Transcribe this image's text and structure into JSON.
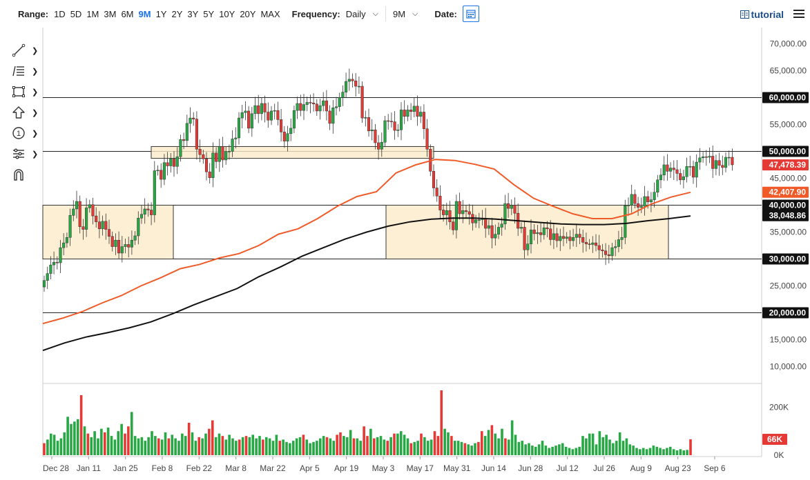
{
  "toolbar": {
    "range_label": "Range:",
    "ranges": [
      "1D",
      "5D",
      "1M",
      "3M",
      "6M",
      "9M",
      "1Y",
      "2Y",
      "3Y",
      "5Y",
      "10Y",
      "20Y",
      "MAX"
    ],
    "active_range": "9M",
    "frequency_label": "Frequency:",
    "frequency_value": "Daily",
    "period_value": "9M",
    "date_label": "Date:",
    "tutorial_label": "tutorial"
  },
  "tools": [
    "line-tool-icon",
    "fibonacci-tool-icon",
    "rectangle-tool-icon",
    "arrow-tool-icon",
    "number-label-icon",
    "measure-tool-icon",
    "magnet-icon"
  ],
  "colors": {
    "up": "#27a844",
    "down": "#e53935",
    "ma50": "#ef5a28",
    "ma200": "#111111",
    "zone_fill": "#fcebc9",
    "zone_stroke": "#333333"
  },
  "chart_data": {
    "type": "candlestick",
    "x_ticks": [
      "Dec 28",
      "Jan 11",
      "Jan 25",
      "Feb 8",
      "Feb 22",
      "Mar 8",
      "Mar 22",
      "Apr 5",
      "Apr 19",
      "May 3",
      "May 17",
      "May 31",
      "Jun 14",
      "Jun 28",
      "Jul 12",
      "Jul 26",
      "Aug 9",
      "Aug 23",
      "Sep 6"
    ],
    "y_ticks": [
      10000,
      15000,
      20000,
      25000,
      30000,
      35000,
      40000,
      45000,
      50000,
      55000,
      60000,
      65000,
      70000
    ],
    "y_tick_labels": [
      "10,000.00",
      "15,000.00",
      "20,000.00",
      "25,000.00",
      "30,000.00",
      "35,000.00",
      "40,000.00",
      "45,000.00",
      "50,000.00",
      "55,000.00",
      "60,000.00",
      "65,000.00",
      "70,000.00"
    ],
    "ylim": [
      7000,
      73000
    ],
    "horizontal_levels": [
      {
        "value": 60000,
        "label": "60,000.00"
      },
      {
        "value": 50000,
        "label": "50,000.00"
      },
      {
        "value": 40000,
        "label": "40,000.00"
      },
      {
        "value": 30000,
        "label": "30,000.00"
      },
      {
        "value": 20000,
        "label": "20,000.00"
      }
    ],
    "price_labels": [
      {
        "value": 47478.39,
        "label": "47,478.39",
        "color": "#e53935"
      },
      {
        "value": 42407.9,
        "label": "42,407.90",
        "color": "#ef5a28"
      },
      {
        "value": 38048.86,
        "label": "38,048.86",
        "color": "#111111"
      }
    ],
    "zones": [
      {
        "start": "Dec 28",
        "end": "Feb 8",
        "low": 30000,
        "high": 40000
      },
      {
        "start": "Feb 8",
        "end": "May 17",
        "low": 48700,
        "high": 50900
      },
      {
        "start": "May 17",
        "end": "Aug 23",
        "low": 30000,
        "high": 40000
      }
    ],
    "closes": [
      26000,
      27300,
      28900,
      29400,
      29300,
      32100,
      33000,
      34000,
      38100,
      39300,
      40700,
      36000,
      35500,
      39500,
      40100,
      38000,
      36900,
      35600,
      37000,
      35500,
      34200,
      32300,
      33500,
      31100,
      32300,
      32700,
      32200,
      33500,
      34300,
      37600,
      38300,
      39300,
      39100,
      38200,
      46400,
      46500,
      44800,
      47900,
      47300,
      48600,
      47200,
      49000,
      52200,
      52000,
      55200,
      56200,
      56000,
      50400,
      49400,
      48600,
      46200,
      45100,
      49700,
      48100,
      50900,
      48400,
      50000,
      50000,
      52300,
      52500,
      56200,
      57200,
      57500,
      54300,
      57000,
      58500,
      57000,
      58900,
      57300,
      55800,
      57500,
      57600,
      55900,
      53600,
      51900,
      53300,
      54300,
      57600,
      58900,
      57600,
      58700,
      59100,
      59000,
      58800,
      57500,
      58500,
      59400,
      57500,
      55200,
      58100,
      58300,
      60000,
      61000,
      63000,
      63400,
      63100,
      62100,
      62100,
      56200,
      56300,
      53800,
      54000,
      51600,
      50400,
      51700,
      55700,
      55600,
      55500,
      53900,
      54000,
      57700,
      56500,
      57700,
      57400,
      58400,
      56500,
      57300,
      54200,
      50400,
      46300,
      43200,
      41700,
      39100,
      38200,
      39000,
      36900,
      35400,
      40700,
      38400,
      39000,
      38800,
      38300,
      36700,
      37300,
      37300,
      37500,
      35700,
      36200,
      33900,
      34600,
      35900,
      36500,
      40300,
      39400,
      40000,
      38500,
      35700,
      35900,
      31700,
      32800,
      35400,
      34700,
      34900,
      34500,
      35800,
      35600,
      33600,
      34700,
      33400,
      34200,
      33800,
      34100,
      33400,
      34000,
      34600,
      34000,
      33100,
      32800,
      32700,
      33000,
      32500,
      31700,
      31500,
      30800,
      30600,
      32100,
      32300,
      33600,
      34000,
      39900,
      40000,
      42000,
      40300,
      39600,
      39800,
      41600,
      40600,
      41000,
      42400,
      44700,
      45600,
      47500,
      46300,
      46900,
      46600,
      45900,
      44700,
      45300,
      47200,
      47200,
      45200,
      48000,
      48800,
      49000,
      48900,
      49100,
      46800,
      48300,
      47400,
      47000,
      48900,
      48900,
      47500
    ],
    "ma50_series": [
      18000,
      19000,
      20200,
      21800,
      23200,
      25000,
      26500,
      28200,
      29000,
      30200,
      31000,
      32500,
      34600,
      35600,
      37500,
      39800,
      41600,
      42500,
      46000,
      47500,
      48500,
      48300,
      47600,
      46700,
      43800,
      41300,
      39800,
      38400,
      37500,
      37500,
      38400,
      40200,
      41500,
      42400
    ],
    "ma200_series": [
      13000,
      14400,
      15500,
      16300,
      17200,
      18300,
      19800,
      21500,
      23000,
      24500,
      26700,
      28500,
      30500,
      32100,
      33700,
      35000,
      36100,
      36900,
      37400,
      37600,
      37600,
      37400,
      37100,
      36800,
      36500,
      36400,
      36400,
      36600,
      37100,
      37500,
      38000
    ],
    "volume_ticks": [
      {
        "value": 0,
        "label": "0K"
      },
      {
        "value": 200000,
        "label": "200K"
      }
    ],
    "volume_label": "66K",
    "volume_max": 270000,
    "volumes": [
      {
        "v": 50000,
        "up": false
      },
      {
        "v": 65000,
        "up": true
      },
      {
        "v": 90000,
        "up": true
      },
      {
        "v": 85000,
        "up": true
      },
      {
        "v": 60000,
        "up": true
      },
      {
        "v": 70000,
        "up": true
      },
      {
        "v": 95000,
        "up": true
      },
      {
        "v": 160000,
        "up": true
      },
      {
        "v": 130000,
        "up": true
      },
      {
        "v": 140000,
        "up": true
      },
      {
        "v": 150000,
        "up": true
      },
      {
        "v": 250000,
        "up": false
      },
      {
        "v": 120000,
        "up": true
      },
      {
        "v": 90000,
        "up": false
      },
      {
        "v": 75000,
        "up": true
      },
      {
        "v": 100000,
        "up": true
      },
      {
        "v": 70000,
        "up": true
      },
      {
        "v": 110000,
        "up": true
      },
      {
        "v": 95000,
        "up": false
      },
      {
        "v": 115000,
        "up": true
      },
      {
        "v": 80000,
        "up": true
      },
      {
        "v": 65000,
        "up": true
      },
      {
        "v": 100000,
        "up": true
      },
      {
        "v": 130000,
        "up": true
      },
      {
        "v": 90000,
        "up": false
      },
      {
        "v": 120000,
        "up": false
      },
      {
        "v": 180000,
        "up": true
      },
      {
        "v": 80000,
        "up": true
      },
      {
        "v": 70000,
        "up": true
      },
      {
        "v": 75000,
        "up": true
      },
      {
        "v": 60000,
        "up": true
      },
      {
        "v": 75000,
        "up": true
      },
      {
        "v": 100000,
        "up": true
      },
      {
        "v": 80000,
        "up": true
      },
      {
        "v": 70000,
        "up": false
      },
      {
        "v": 65000,
        "up": true
      },
      {
        "v": 95000,
        "up": true
      },
      {
        "v": 70000,
        "up": false
      },
      {
        "v": 85000,
        "up": true
      },
      {
        "v": 70000,
        "up": true
      },
      {
        "v": 60000,
        "up": true
      },
      {
        "v": 90000,
        "up": true
      },
      {
        "v": 80000,
        "up": true
      },
      {
        "v": 135000,
        "up": false
      },
      {
        "v": 95000,
        "up": true
      },
      {
        "v": 60000,
        "up": true
      },
      {
        "v": 75000,
        "up": false
      },
      {
        "v": 70000,
        "up": true
      },
      {
        "v": 90000,
        "up": true
      },
      {
        "v": 110000,
        "up": false
      },
      {
        "v": 145000,
        "up": false
      },
      {
        "v": 75000,
        "up": true
      },
      {
        "v": 90000,
        "up": true
      },
      {
        "v": 80000,
        "up": false
      },
      {
        "v": 65000,
        "up": true
      },
      {
        "v": 85000,
        "up": true
      },
      {
        "v": 70000,
        "up": true
      },
      {
        "v": 60000,
        "up": true
      },
      {
        "v": 65000,
        "up": false
      },
      {
        "v": 75000,
        "up": true
      },
      {
        "v": 80000,
        "up": false
      },
      {
        "v": 75000,
        "up": true
      },
      {
        "v": 85000,
        "up": true
      },
      {
        "v": 70000,
        "up": true
      },
      {
        "v": 80000,
        "up": true
      },
      {
        "v": 65000,
        "up": false
      },
      {
        "v": 75000,
        "up": true
      },
      {
        "v": 70000,
        "up": true
      },
      {
        "v": 60000,
        "up": true
      },
      {
        "v": 85000,
        "up": true
      },
      {
        "v": 60000,
        "up": false
      },
      {
        "v": 65000,
        "up": true
      },
      {
        "v": 55000,
        "up": true
      },
      {
        "v": 50000,
        "up": true
      },
      {
        "v": 60000,
        "up": true
      },
      {
        "v": 70000,
        "up": true
      },
      {
        "v": 75000,
        "up": true
      },
      {
        "v": 85000,
        "up": false
      },
      {
        "v": 65000,
        "up": true
      },
      {
        "v": 50000,
        "up": true
      },
      {
        "v": 55000,
        "up": true
      },
      {
        "v": 60000,
        "up": true
      },
      {
        "v": 70000,
        "up": true
      },
      {
        "v": 80000,
        "up": true
      },
      {
        "v": 75000,
        "up": false
      },
      {
        "v": 70000,
        "up": true
      },
      {
        "v": 60000,
        "up": true
      },
      {
        "v": 85000,
        "up": false
      },
      {
        "v": 95000,
        "up": false
      },
      {
        "v": 80000,
        "up": true
      },
      {
        "v": 75000,
        "up": true
      },
      {
        "v": 105000,
        "up": true
      },
      {
        "v": 70000,
        "up": false
      },
      {
        "v": 70000,
        "up": true
      },
      {
        "v": 60000,
        "up": true
      },
      {
        "v": 120000,
        "up": false
      },
      {
        "v": 80000,
        "up": false
      },
      {
        "v": 110000,
        "up": true
      },
      {
        "v": 70000,
        "up": false
      },
      {
        "v": 75000,
        "up": true
      },
      {
        "v": 80000,
        "up": true
      },
      {
        "v": 65000,
        "up": true
      },
      {
        "v": 60000,
        "up": false
      },
      {
        "v": 75000,
        "up": true
      },
      {
        "v": 90000,
        "up": false
      },
      {
        "v": 90000,
        "up": true
      },
      {
        "v": 100000,
        "up": true
      },
      {
        "v": 85000,
        "up": true
      },
      {
        "v": 70000,
        "up": true
      },
      {
        "v": 50000,
        "up": false
      },
      {
        "v": 55000,
        "up": true
      },
      {
        "v": 60000,
        "up": true
      },
      {
        "v": 90000,
        "up": false
      },
      {
        "v": 75000,
        "up": true
      },
      {
        "v": 60000,
        "up": true
      },
      {
        "v": 65000,
        "up": true
      },
      {
        "v": 100000,
        "up": false
      },
      {
        "v": 80000,
        "up": false
      },
      {
        "v": 270000,
        "up": false
      },
      {
        "v": 110000,
        "up": true
      },
      {
        "v": 95000,
        "up": true
      },
      {
        "v": 80000,
        "up": false
      },
      {
        "v": 60000,
        "up": true
      },
      {
        "v": 60000,
        "up": true
      },
      {
        "v": 55000,
        "up": true
      },
      {
        "v": 50000,
        "up": false
      },
      {
        "v": 45000,
        "up": true
      },
      {
        "v": 40000,
        "up": true
      },
      {
        "v": 50000,
        "up": true
      },
      {
        "v": 55000,
        "up": false
      },
      {
        "v": 100000,
        "up": false
      },
      {
        "v": 80000,
        "up": true
      },
      {
        "v": 105000,
        "up": true
      },
      {
        "v": 125000,
        "up": false
      },
      {
        "v": 90000,
        "up": true
      },
      {
        "v": 70000,
        "up": true
      },
      {
        "v": 110000,
        "up": true
      },
      {
        "v": 70000,
        "up": false
      },
      {
        "v": 65000,
        "up": true
      },
      {
        "v": 145000,
        "up": true
      },
      {
        "v": 85000,
        "up": true
      },
      {
        "v": 55000,
        "up": true
      },
      {
        "v": 60000,
        "up": true
      },
      {
        "v": 45000,
        "up": true
      },
      {
        "v": 50000,
        "up": true
      },
      {
        "v": 40000,
        "up": true
      },
      {
        "v": 35000,
        "up": true
      },
      {
        "v": 45000,
        "up": true
      },
      {
        "v": 60000,
        "up": true
      },
      {
        "v": 40000,
        "up": true
      },
      {
        "v": 30000,
        "up": true
      },
      {
        "v": 35000,
        "up": true
      },
      {
        "v": 40000,
        "up": true
      },
      {
        "v": 45000,
        "up": true
      },
      {
        "v": 50000,
        "up": true
      },
      {
        "v": 35000,
        "up": true
      },
      {
        "v": 30000,
        "up": true
      },
      {
        "v": 25000,
        "up": true
      },
      {
        "v": 30000,
        "up": true
      },
      {
        "v": 35000,
        "up": true
      },
      {
        "v": 80000,
        "up": true
      },
      {
        "v": 70000,
        "up": true
      },
      {
        "v": 90000,
        "up": true
      },
      {
        "v": 90000,
        "up": true
      },
      {
        "v": 45000,
        "up": true
      },
      {
        "v": 100000,
        "up": true
      },
      {
        "v": 75000,
        "up": true
      },
      {
        "v": 85000,
        "up": true
      },
      {
        "v": 65000,
        "up": true
      },
      {
        "v": 50000,
        "up": true
      },
      {
        "v": 60000,
        "up": true
      },
      {
        "v": 95000,
        "up": true
      },
      {
        "v": 60000,
        "up": true
      },
      {
        "v": 70000,
        "up": true
      },
      {
        "v": 45000,
        "up": true
      },
      {
        "v": 40000,
        "up": true
      },
      {
        "v": 30000,
        "up": true
      },
      {
        "v": 25000,
        "up": true
      },
      {
        "v": 30000,
        "up": true
      },
      {
        "v": 25000,
        "up": true
      },
      {
        "v": 30000,
        "up": true
      },
      {
        "v": 40000,
        "up": true
      },
      {
        "v": 35000,
        "up": true
      },
      {
        "v": 30000,
        "up": true
      },
      {
        "v": 25000,
        "up": true
      },
      {
        "v": 30000,
        "up": true
      },
      {
        "v": 35000,
        "up": true
      },
      {
        "v": 25000,
        "up": true
      },
      {
        "v": 20000,
        "up": true
      },
      {
        "v": 25000,
        "up": true
      },
      {
        "v": 20000,
        "up": true
      },
      {
        "v": 22000,
        "up": true
      },
      {
        "v": 66000,
        "up": false
      }
    ]
  }
}
